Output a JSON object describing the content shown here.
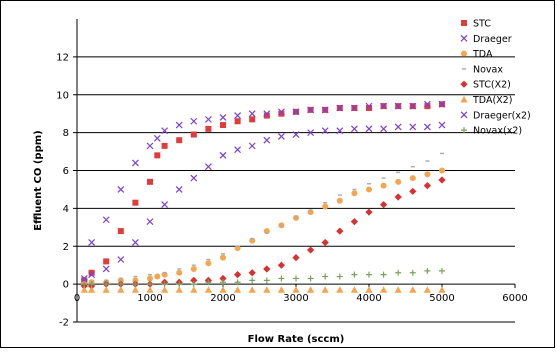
{
  "chart_data": {
    "type": "scatter",
    "title": "",
    "xlabel": "Flow Rate (sccm)",
    "ylabel": "Effluent CO (ppm)",
    "xlim": [
      0,
      6000
    ],
    "ylim": [
      -2,
      14
    ],
    "xticks": [
      0,
      1000,
      2000,
      3000,
      4000,
      5000,
      6000
    ],
    "yticks": [
      -2,
      0,
      2,
      4,
      6,
      8,
      10,
      12
    ],
    "grid": "horizontal",
    "legend_position": "right",
    "series": [
      {
        "name": "STC",
        "marker": "square",
        "color": "#e03c3c",
        "x": [
          100,
          200,
          400,
          600,
          800,
          1000,
          1100,
          1200,
          1400,
          1600,
          1800,
          2000,
          2200,
          2400,
          2600,
          2800,
          3000,
          3200,
          3400,
          3600,
          3800,
          4000,
          4200,
          4400,
          4600,
          4800,
          5000
        ],
        "y": [
          0.2,
          0.6,
          1.2,
          2.8,
          4.3,
          5.4,
          6.8,
          7.3,
          7.6,
          7.9,
          8.2,
          8.4,
          8.6,
          8.7,
          8.9,
          9.0,
          9.1,
          9.2,
          9.2,
          9.3,
          9.3,
          9.3,
          9.4,
          9.4,
          9.4,
          9.4,
          9.5
        ]
      },
      {
        "name": "Draeger",
        "marker": "x",
        "color": "#7b3fd6",
        "x": [
          100,
          200,
          400,
          600,
          800,
          1000,
          1100,
          1200,
          1400,
          1600,
          1800,
          2000,
          2200,
          2400,
          2600,
          2800,
          3000,
          3200,
          3400,
          3600,
          3800,
          4000,
          4200,
          4400,
          4600,
          4800,
          5000
        ],
        "y": [
          0.1,
          2.2,
          3.4,
          5.0,
          6.4,
          7.3,
          7.7,
          8.1,
          8.4,
          8.6,
          8.7,
          8.8,
          8.9,
          9.0,
          9.0,
          9.1,
          9.1,
          9.2,
          9.2,
          9.3,
          9.3,
          9.4,
          9.4,
          9.4,
          9.4,
          9.5,
          9.5
        ]
      },
      {
        "name": "TDA",
        "marker": "circle",
        "color": "#f5a44f",
        "x": [
          100,
          200,
          400,
          600,
          800,
          1000,
          1100,
          1200,
          1400,
          1600,
          1800,
          2000,
          2200,
          2400,
          2600,
          2800,
          3000,
          3200,
          3400,
          3600,
          3800,
          4000,
          4200,
          4400,
          4600,
          4800,
          5000
        ],
        "y": [
          0.0,
          0.1,
          0.1,
          0.2,
          0.2,
          0.3,
          0.4,
          0.5,
          0.6,
          0.8,
          1.1,
          1.4,
          1.9,
          2.3,
          2.8,
          3.1,
          3.5,
          3.8,
          4.1,
          4.4,
          4.8,
          5.0,
          5.2,
          5.4,
          5.6,
          5.8,
          6.0
        ]
      },
      {
        "name": "Novax",
        "marker": "dash",
        "color": "#aaaaaa",
        "x": [
          100,
          200,
          400,
          600,
          800,
          1000,
          1200,
          1400,
          1600,
          1800,
          2000,
          2200,
          2400,
          2600,
          2800,
          3000,
          3200,
          3400,
          3600,
          3800,
          4000,
          4200,
          4400,
          4600,
          4800,
          5000
        ],
        "y": [
          0.0,
          0.1,
          0.2,
          0.3,
          0.4,
          0.5,
          0.6,
          0.8,
          1.0,
          1.3,
          1.6,
          2.0,
          2.4,
          2.7,
          3.1,
          3.5,
          3.9,
          4.3,
          4.7,
          5.0,
          5.3,
          5.6,
          5.9,
          6.2,
          6.5,
          6.9
        ]
      },
      {
        "name": "STC(X2)",
        "marker": "diamond",
        "color": "#d93030",
        "x": [
          100,
          200,
          400,
          600,
          800,
          1000,
          1200,
          1400,
          1600,
          1800,
          2000,
          2200,
          2400,
          2600,
          2800,
          3000,
          3200,
          3400,
          3600,
          3800,
          4000,
          4200,
          4400,
          4600,
          4800,
          5000
        ],
        "y": [
          -0.1,
          -0.1,
          0.0,
          0.0,
          0.0,
          0.0,
          0.1,
          0.1,
          0.2,
          0.2,
          0.3,
          0.5,
          0.6,
          0.8,
          1.0,
          1.4,
          1.8,
          2.2,
          2.8,
          3.3,
          3.8,
          4.2,
          4.6,
          4.9,
          5.2,
          5.5
        ]
      },
      {
        "name": "TDA(X2)",
        "marker": "triangle",
        "color": "#f5a44f",
        "x": [
          100,
          200,
          400,
          600,
          800,
          1000,
          1200,
          1400,
          1600,
          1800,
          2000,
          2200,
          2400,
          2600,
          2800,
          3000,
          3200,
          3400,
          3600,
          3800,
          4000,
          4200,
          4400,
          4600,
          4800,
          5000
        ],
        "y": [
          -0.3,
          -0.3,
          -0.3,
          -0.3,
          -0.3,
          -0.3,
          -0.3,
          -0.3,
          -0.3,
          -0.3,
          -0.3,
          -0.3,
          -0.3,
          -0.3,
          -0.3,
          -0.3,
          -0.3,
          -0.3,
          -0.3,
          -0.3,
          -0.3,
          -0.3,
          -0.3,
          -0.3,
          -0.3,
          -0.3
        ]
      },
      {
        "name": "Draeger(x2)",
        "marker": "x",
        "color": "#7b3fd6",
        "x": [
          100,
          200,
          400,
          600,
          800,
          1000,
          1200,
          1400,
          1600,
          1800,
          2000,
          2200,
          2400,
          2600,
          2800,
          3000,
          3200,
          3400,
          3600,
          3800,
          4000,
          4200,
          4400,
          4600,
          4800,
          5000
        ],
        "y": [
          0.3,
          0.5,
          0.8,
          1.3,
          2.2,
          3.3,
          4.2,
          5.0,
          5.6,
          6.2,
          6.8,
          7.1,
          7.3,
          7.6,
          7.8,
          7.9,
          8.0,
          8.1,
          8.1,
          8.2,
          8.2,
          8.2,
          8.3,
          8.3,
          8.3,
          8.4
        ]
      },
      {
        "name": "Novax(x2)",
        "marker": "plus",
        "color": "#7aa35a",
        "x": [
          100,
          200,
          400,
          600,
          800,
          1000,
          1200,
          1400,
          1600,
          1800,
          2000,
          2200,
          2400,
          2600,
          2800,
          3000,
          3200,
          3400,
          3600,
          3800,
          4000,
          4200,
          4400,
          4600,
          4800,
          5000
        ],
        "y": [
          0.0,
          0.0,
          0.0,
          0.0,
          0.0,
          0.0,
          0.0,
          0.0,
          0.0,
          0.1,
          0.1,
          0.1,
          0.2,
          0.2,
          0.3,
          0.3,
          0.3,
          0.4,
          0.4,
          0.5,
          0.5,
          0.5,
          0.6,
          0.6,
          0.7,
          0.7
        ]
      }
    ]
  }
}
